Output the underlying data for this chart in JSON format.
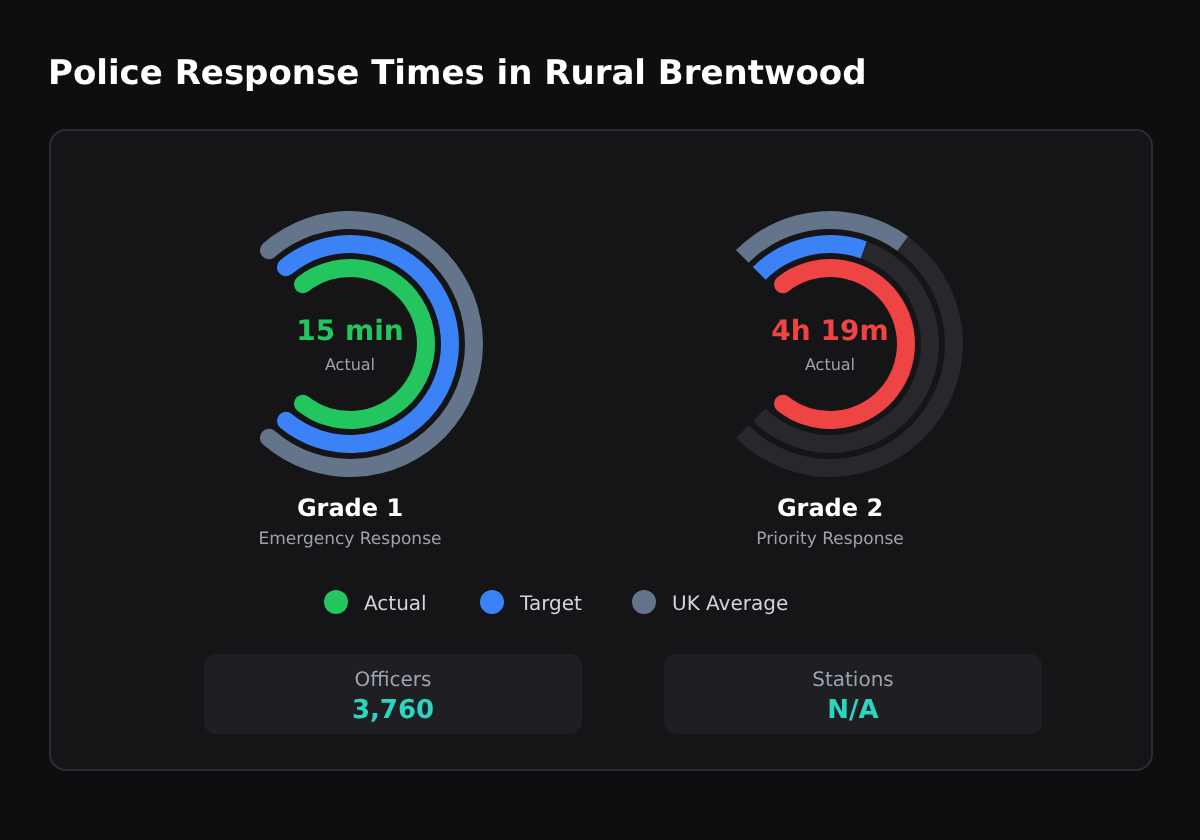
{
  "chart_data": [
    {
      "type": "donut",
      "title": "Grade 1",
      "subtitle": "Emergency Response",
      "legend": "bottom",
      "categories": [
        null,
        null
      ],
      "annotations": [
        "15 min",
        "Actual"
      ],
      "series": [
        {
          "name": "UK Average",
          "color": "#64748b",
          "values": [
            100,
            0
          ]
        },
        {
          "name": "Target",
          "color": "#3b82f6",
          "values": [
            100,
            0
          ]
        },
        {
          "name": "Actual",
          "color": "#22c55e",
          "values": [
            100,
            0
          ]
        }
      ]
    },
    {
      "type": "donut",
      "title": "Grade 2",
      "subtitle": "Priority Response",
      "categories": [
        null,
        null
      ],
      "annotations": [
        "4h 19m",
        "Actual"
      ],
      "series": [
        {
          "colors": [
            "#64748b",
            "#27272c"
          ],
          "values": [
            30,
            70
          ]
        },
        {
          "colors": [
            "#3b82f6",
            "#27272c"
          ],
          "values": [
            24,
            76
          ]
        },
        {
          "color": "#ef4444",
          "values": [
            100,
            0
          ]
        }
      ]
    },
    {
      "type": "other",
      "title": "Police Response Times in Rural Brentwood",
      "categories": [
        "Officers",
        "Stations"
      ],
      "value_labels": [
        "3,760",
        "N/A"
      ],
      "color": "#2dd4bf"
    }
  ]
}
